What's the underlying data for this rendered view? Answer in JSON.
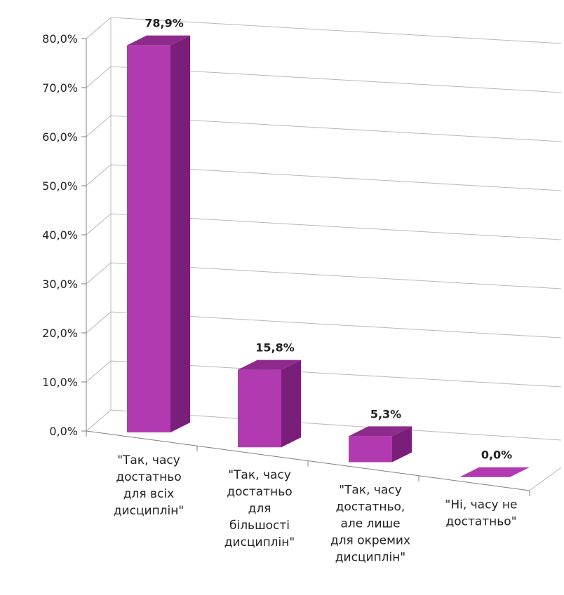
{
  "chart_data": {
    "type": "bar",
    "categories": [
      "\"Так, часу достатньо для всіх дисциплін\"",
      "\"Так, часу достатньо для більшості дисциплін\"",
      "\"Так, часу достатньо, але лише для окремих дисциплін\"",
      "\"Ні, часу не достатньо\""
    ],
    "category_lines": [
      [
        "\"Так, часу",
        "достатньо",
        "для всіх",
        "дисциплін\""
      ],
      [
        "\"Так, часу",
        "достатньо",
        "для",
        "більшості",
        "дисциплін\""
      ],
      [
        "\"Так, часу",
        "достатньо,",
        "але лише",
        "для окремих",
        "дисциплін\""
      ],
      [
        "\"Ні, часу не",
        "достатньо\""
      ]
    ],
    "values": [
      78.9,
      15.8,
      5.3,
      0.0
    ],
    "data_labels": [
      "78,9%",
      "15,8%",
      "5,3%",
      "0,0%"
    ],
    "yticks": [
      "0,0%",
      "10,0%",
      "20,0%",
      "30,0%",
      "40,0%",
      "50,0%",
      "60,0%",
      "70,0%",
      "80,0%"
    ],
    "ylim": [
      0,
      80
    ],
    "style": "3d-column",
    "grid": true,
    "legend": "none",
    "colors": {
      "front": "#b23ab0",
      "side": "#7a1f79",
      "top": "#8f2a8d",
      "grid": "#b8b8b8",
      "axis": "#7f7f7f"
    }
  }
}
